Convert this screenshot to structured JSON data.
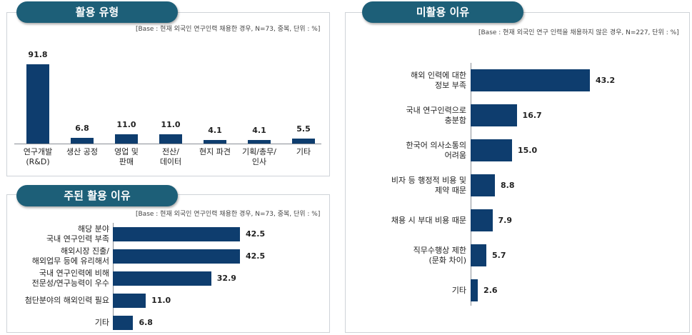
{
  "usage": {
    "title": "활용 유형",
    "base": "[Base : 현재 외국인 연구인력 채용한 경우, N=73, 중복, 단위 : %]",
    "chart_data": {
      "type": "bar",
      "categories": [
        "연구개발\n(R&D)",
        "생산 공정",
        "영업 및\n판매",
        "전산/\n데이터",
        "현지 파견",
        "기획/총무/\n인사",
        "기타"
      ],
      "values": [
        91.8,
        6.8,
        11.0,
        11.0,
        4.1,
        4.1,
        5.5
      ],
      "value_labels": [
        "91.8",
        "6.8",
        "11.0",
        "11.0",
        "4.1",
        "4.1",
        "5.5"
      ],
      "ylim": [
        0,
        100
      ]
    }
  },
  "main_reason": {
    "title": "주된 활용 이유",
    "base": "[Base : 현재 외국인 연구인력 채용한 경우, N=73, 중복, 단위 : %]",
    "chart_data": {
      "type": "bar",
      "orientation": "horizontal",
      "categories": [
        "해당 분야\n국내 연구인력 부족",
        "해외시장 진출/\n해외업무 등에 유리해서",
        "국내 연구인력에 비해\n전문성/연구능력이 우수",
        "첨단분야의 해외인력 필요",
        "기타"
      ],
      "values": [
        42.5,
        42.5,
        32.9,
        11.0,
        6.8
      ],
      "value_labels": [
        "42.5",
        "42.5",
        "32.9",
        "11.0",
        "6.8"
      ],
      "xlim": [
        0,
        100
      ]
    }
  },
  "non_usage": {
    "title": "미활용 이유",
    "base": "[Base : 현재 외국인 연구 인력을 채용하지 않은 경우, N=227, 단위 : %]",
    "chart_data": {
      "type": "bar",
      "orientation": "horizontal",
      "categories": [
        "해외 인력에 대한\n정보 부족",
        "국내 연구인력으로\n충분함",
        "한국어 의사소통의\n어려움",
        "비자 등 행정적 비용 및\n제약 때문",
        "채용 시 부대 비용 때문",
        "직무수행상 제한\n(문화 차이)",
        "기타"
      ],
      "values": [
        43.2,
        16.7,
        15.0,
        8.8,
        7.9,
        5.7,
        2.6
      ],
      "value_labels": [
        "43.2",
        "16.7",
        "15.0",
        "8.8",
        "7.9",
        "5.7",
        "2.6"
      ],
      "xlim": [
        0,
        100
      ]
    }
  },
  "colors": {
    "bar": "#0e3d6e",
    "pill": "#1d5f78"
  }
}
